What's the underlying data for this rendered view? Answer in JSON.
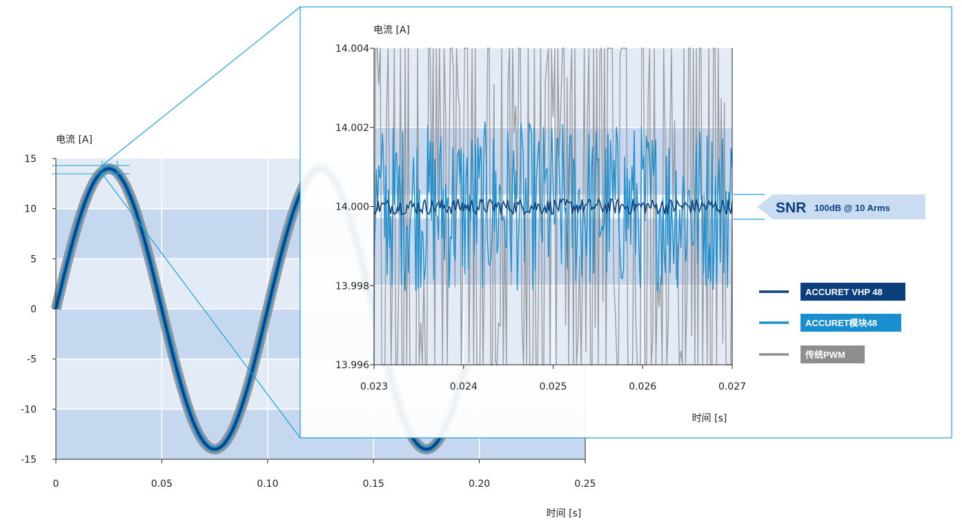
{
  "chart_data": [
    {
      "type": "line",
      "panel": "main",
      "ylabel": "电流 [A]",
      "xlabel": "时间 [s]",
      "xlim": [
        0,
        0.25
      ],
      "ylim": [
        -15,
        15
      ],
      "x_ticks": [
        "0",
        "0.05",
        "0.10",
        "0.15",
        "0.20",
        "0.25"
      ],
      "y_ticks": [
        "15",
        "10",
        "5",
        "0",
        "-5",
        "-10",
        "-15"
      ],
      "grid": true,
      "series": [
        {
          "name": "ACCURET VHP 48",
          "color": "#0b3f7e",
          "amplitude": 14,
          "frequency_hz": 10
        },
        {
          "name": "ACCURET模块48",
          "color": "#1a8fd0",
          "amplitude": 14,
          "frequency_hz": 10
        },
        {
          "name": "传统PWM",
          "color": "#8e8e8e",
          "amplitude": 14,
          "frequency_hz": 10
        }
      ]
    },
    {
      "type": "line",
      "panel": "zoom",
      "ylabel": "电流 [A]",
      "xlabel": "时间 [s]",
      "xlim": [
        0.023,
        0.027
      ],
      "ylim": [
        13.996,
        14.004
      ],
      "x_ticks": [
        "0.023",
        "0.024",
        "0.025",
        "0.026",
        "0.027"
      ],
      "y_ticks": [
        "14.004",
        "14.002",
        "14.000",
        "13.998",
        "13.996"
      ],
      "grid": true,
      "series": [
        {
          "name": "ACCURET VHP 48",
          "color": "#0b3f7e",
          "noise_band": [
            13.9998,
            14.0002
          ]
        },
        {
          "name": "ACCURET模块48",
          "color": "#1a8fd0",
          "noise_band": [
            13.998,
            14.002
          ]
        },
        {
          "name": "传统PWM",
          "color": "#8e8e8e",
          "noise_band": [
            13.996,
            14.004
          ]
        }
      ]
    }
  ],
  "annotation": {
    "snr_label": "SNR",
    "snr_value": "100dB @ 10 Arms"
  },
  "legend": [
    {
      "label": "ACCURET VHP 48",
      "color": "#0b3f7e"
    },
    {
      "label": "ACCURET模块48",
      "color": "#1a8fd0"
    },
    {
      "label": "传统PWM",
      "color": "#8e8e8e"
    }
  ]
}
